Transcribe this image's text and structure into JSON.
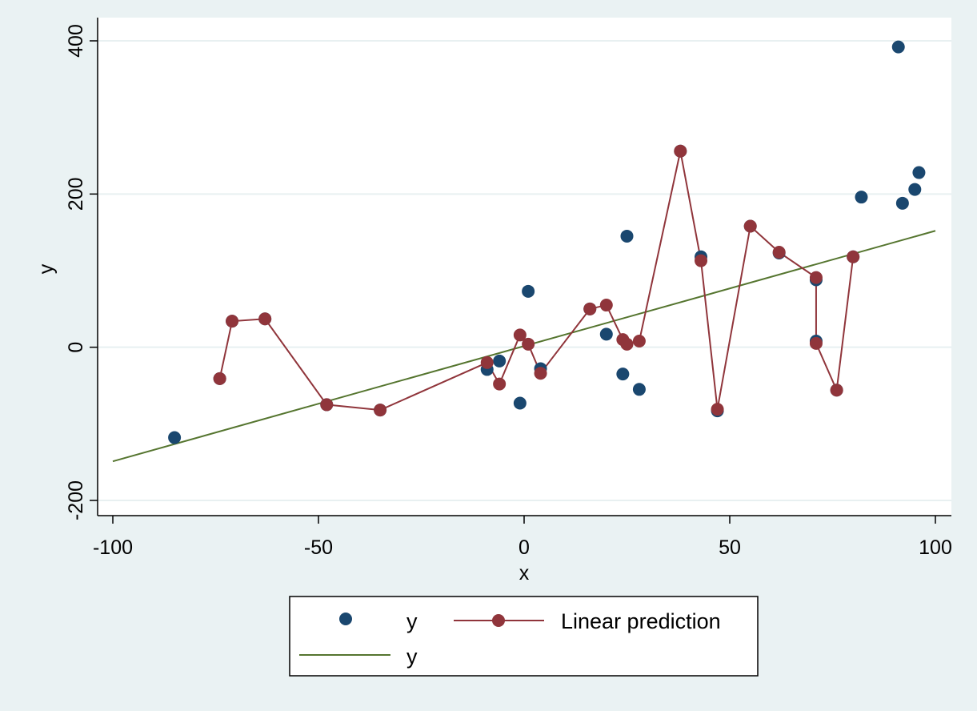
{
  "chart_data": {
    "type": "scatter",
    "xlabel": "x",
    "ylabel": "y",
    "xlim": [
      -100,
      100
    ],
    "ylim": [
      -200,
      400
    ],
    "xticks": [
      "-100",
      "-50",
      "0",
      "50",
      "100"
    ],
    "yticks": [
      "-200",
      "0",
      "200",
      "400"
    ],
    "xtick_values": [
      -100,
      -50,
      0,
      50,
      100
    ],
    "ytick_values": [
      -200,
      0,
      200,
      400
    ],
    "grid": true,
    "legend_position": "bottom",
    "colors": {
      "background": "#eaf2f3",
      "plot_area": "#ffffff",
      "grid": "#e8f0f1",
      "scatter": "#1a476f",
      "prediction": "#90353b",
      "fit_line": "#55752f"
    },
    "series": [
      {
        "name": "y",
        "type": "scatter",
        "points": [
          [
            -85,
            -118
          ],
          [
            -74,
            -41
          ],
          [
            -71,
            34
          ],
          [
            -63,
            37
          ],
          [
            -48,
            -75
          ],
          [
            -35,
            -82
          ],
          [
            -9,
            -29
          ],
          [
            -6,
            -18
          ],
          [
            -1,
            -73
          ],
          [
            1,
            73
          ],
          [
            4,
            -28
          ],
          [
            16,
            50
          ],
          [
            20,
            17
          ],
          [
            24,
            -35
          ],
          [
            25,
            145
          ],
          [
            28,
            -55
          ],
          [
            38,
            256
          ],
          [
            43,
            118
          ],
          [
            47,
            -83
          ],
          [
            55,
            158
          ],
          [
            62,
            123
          ],
          [
            71,
            88
          ],
          [
            71,
            8
          ],
          [
            76,
            -56
          ],
          [
            80,
            118
          ],
          [
            82,
            196
          ],
          [
            91,
            392
          ],
          [
            92,
            188
          ],
          [
            95,
            206
          ],
          [
            96,
            228
          ]
        ]
      },
      {
        "name": "Linear prediction",
        "type": "line+markers",
        "points": [
          [
            -74,
            -41
          ],
          [
            -71,
            34
          ],
          [
            -63,
            37
          ],
          [
            -48,
            -75
          ],
          [
            -35,
            -82
          ],
          [
            -9,
            -20
          ],
          [
            -6,
            -48
          ],
          [
            -1,
            16
          ],
          [
            1,
            4
          ],
          [
            4,
            -34
          ],
          [
            16,
            50
          ],
          [
            20,
            55
          ],
          [
            24,
            10
          ],
          [
            25,
            4
          ],
          [
            28,
            8
          ],
          [
            38,
            256
          ],
          [
            43,
            113
          ],
          [
            47,
            -81
          ],
          [
            55,
            158
          ],
          [
            62,
            124
          ],
          [
            71,
            91
          ],
          [
            71,
            5
          ],
          [
            76,
            -56
          ],
          [
            80,
            118
          ]
        ]
      },
      {
        "name": "y",
        "type": "line",
        "points": [
          [
            -100,
            -149
          ],
          [
            100,
            152
          ]
        ]
      }
    ]
  }
}
